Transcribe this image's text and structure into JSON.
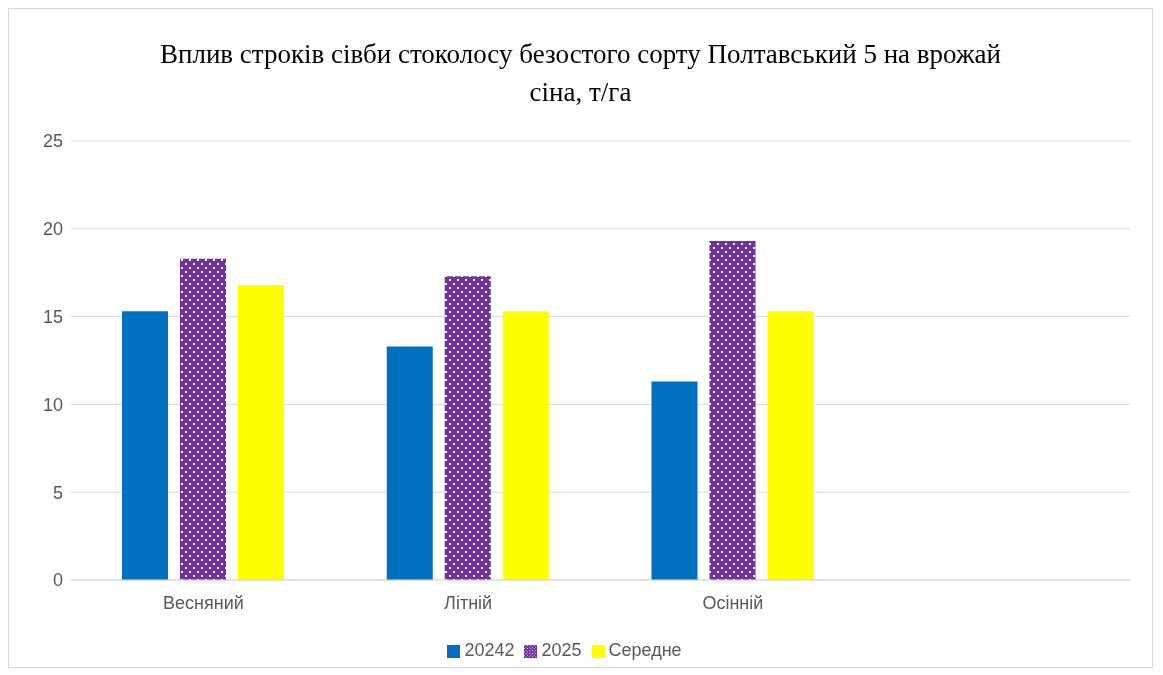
{
  "chart_data": {
    "type": "bar",
    "title": "Вплив строків сівби стоколосу безостого сорту Полтавський 5 на врожай сіна, т/га",
    "categories": [
      "Весняний",
      "Літній",
      "Осінній",
      null
    ],
    "series": [
      {
        "name": "20242",
        "color": "#0070c0",
        "values": [
          15.3,
          13.3,
          11.3,
          null
        ]
      },
      {
        "name": "2025",
        "color": "#7030a0",
        "values": [
          18.3,
          17.3,
          19.3,
          null
        ]
      },
      {
        "name": "Середне",
        "color": "#ffff00",
        "values": [
          16.8,
          15.3,
          15.3,
          null
        ]
      }
    ],
    "ylim": [
      0,
      25
    ],
    "yticks": [
      0,
      5,
      10,
      15,
      20,
      25
    ],
    "grid": "y",
    "legend": "bottom"
  }
}
